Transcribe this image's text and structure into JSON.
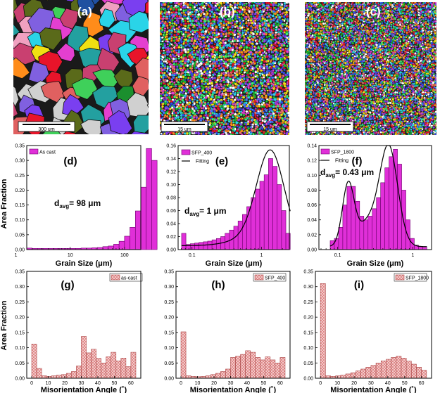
{
  "figure": {
    "y_axis_label": "Area Fraction",
    "panels_top": [
      {
        "letter": "(a)",
        "scale_bar": "300 um"
      },
      {
        "letter": "(b)",
        "scale_bar": "15 um"
      },
      {
        "letter": "(c)",
        "scale_bar": "15 um"
      }
    ]
  },
  "chart_data": [
    {
      "type": "bar",
      "panel": "(d)",
      "legend": "As cast",
      "xlabel": "Grain Size (μm)",
      "ylabel": "Area Fraction",
      "xscale": "log",
      "ylim": [
        0,
        0.35
      ],
      "yticks": [
        "0.00",
        "0.05",
        "0.10",
        "0.15",
        "0.20",
        "0.25",
        "0.30",
        "0.35"
      ],
      "xticks": [
        "1",
        "10",
        "100"
      ],
      "annotation_main": "d",
      "annotation_sub": "avg",
      "annotation_rest": "= 98  μm",
      "bar_log_start": 0.2,
      "bar_log_step": 0.1,
      "values": [
        0.005,
        0.004,
        0.004,
        0.004,
        0.004,
        0.004,
        0.004,
        0.004,
        0.004,
        0.004,
        0.005,
        0.005,
        0.006,
        0.007,
        0.01,
        0.012,
        0.018,
        0.028,
        0.045,
        0.075,
        0.13,
        0.21,
        0.34,
        0.3
      ]
    },
    {
      "type": "bar",
      "panel": "(e)",
      "legend": "SFP_400",
      "legend_fit": "Fitting",
      "xlabel": "Grain Size (μm)",
      "xscale": "log",
      "ylim": [
        0,
        0.16
      ],
      "yticks": [
        "0.00",
        "0.02",
        "0.04",
        "0.06",
        "0.08",
        "0.10",
        "0.12",
        "0.14",
        "0.16"
      ],
      "xticks": [
        "0.1",
        "1"
      ],
      "annotation_main": "d",
      "annotation_sub": "avg",
      "annotation_rest": "= 1  μm",
      "bar_log_start": -1.15,
      "bar_log_step": 0.0625,
      "values": [
        0.025,
        0.008,
        0.009,
        0.01,
        0.011,
        0.012,
        0.013,
        0.015,
        0.017,
        0.02,
        0.025,
        0.03,
        0.036,
        0.044,
        0.054,
        0.066,
        0.08,
        0.093,
        0.105,
        0.115,
        0.14,
        0.128,
        0.1,
        0.06,
        0.025
      ]
    },
    {
      "type": "bar",
      "panel": "(f)",
      "legend": "SFP_1800",
      "legend_fit": "Fitting",
      "xlabel": "Grain Size (μm)",
      "xscale": "log",
      "ylim": [
        0,
        0.14
      ],
      "yticks": [
        "0.00",
        "0.02",
        "0.04",
        "0.06",
        "0.08",
        "0.10",
        "0.12",
        "0.14"
      ],
      "xticks": [
        "0.1",
        "1"
      ],
      "annotation_main": "d",
      "annotation_sub": "avg",
      "annotation_rest": "= 0.43  μm",
      "bar_log_start": -1.1,
      "bar_log_step": 0.056,
      "values": [
        0.012,
        0.015,
        0.03,
        0.06,
        0.085,
        0.085,
        0.065,
        0.045,
        0.04,
        0.045,
        0.055,
        0.07,
        0.09,
        0.11,
        0.125,
        0.135,
        0.115,
        0.08,
        0.04,
        0.015,
        0.006,
        0.004,
        0.003
      ]
    },
    {
      "type": "bar",
      "panel": "(g)",
      "legend": "as-cast",
      "xlabel": "Misorientation Angle (˚)",
      "ylabel": "Area Fraction",
      "ylim": [
        0,
        0.35
      ],
      "yticks": [
        "0.00",
        "0.05",
        "0.10",
        "0.15",
        "0.20",
        "0.25",
        "0.30",
        "0.35"
      ],
      "xticks": [
        "0",
        "10",
        "20",
        "30",
        "40",
        "50",
        "60"
      ],
      "bin_width": 3,
      "values": [
        0.112,
        0.032,
        0.008,
        0.006,
        0.008,
        0.01,
        0.012,
        0.016,
        0.022,
        0.04,
        0.137,
        0.083,
        0.095,
        0.065,
        0.05,
        0.07,
        0.085,
        0.057,
        0.066,
        0.038,
        0.085
      ]
    },
    {
      "type": "bar",
      "panel": "(h)",
      "legend": "SFP_400",
      "xlabel": "Misorientation Angle (˚)",
      "ylim": [
        0,
        0.35
      ],
      "yticks": [
        "0.00",
        "0.05",
        "0.10",
        "0.15",
        "0.20",
        "0.25",
        "0.30",
        "0.35"
      ],
      "xticks": [
        "0",
        "10",
        "20",
        "30",
        "40",
        "50",
        "60"
      ],
      "bin_width": 3,
      "values": [
        0.152,
        0.008,
        0.006,
        0.005,
        0.006,
        0.008,
        0.012,
        0.016,
        0.022,
        0.03,
        0.068,
        0.072,
        0.078,
        0.09,
        0.085,
        0.068,
        0.06,
        0.07,
        0.06,
        0.05,
        0.068
      ]
    },
    {
      "type": "bar",
      "panel": "(i)",
      "legend": "SFP_1800",
      "xlabel": "Misorientation Angle (˚)",
      "ylim": [
        0,
        0.35
      ],
      "yticks": [
        "0.00",
        "0.05",
        "0.10",
        "0.15",
        "0.20",
        "0.25",
        "0.30",
        "0.35"
      ],
      "xticks": [
        "0",
        "10",
        "20",
        "30",
        "40",
        "50",
        "60"
      ],
      "bin_width": 3,
      "values": [
        0.31,
        0.008,
        0.006,
        0.008,
        0.01,
        0.014,
        0.018,
        0.024,
        0.03,
        0.036,
        0.042,
        0.05,
        0.057,
        0.062,
        0.068,
        0.072,
        0.066,
        0.056,
        0.046,
        0.036,
        0.026
      ]
    }
  ]
}
